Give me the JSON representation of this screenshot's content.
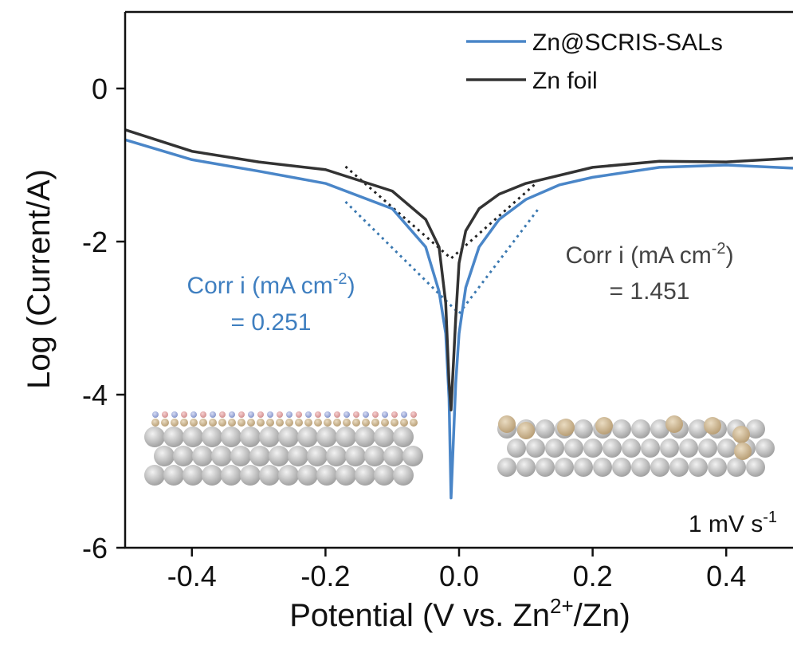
{
  "chart_data": {
    "type": "line",
    "x_label": {
      "text": "Potential (V vs. Zn",
      "sup": "2+",
      "after": "/Zn)"
    },
    "y_label": "Log (Current/A)",
    "xlim": [
      -0.5,
      0.5
    ],
    "ylim": [
      -6,
      1
    ],
    "xticks": [
      -0.4,
      -0.2,
      {
        "value": 0,
        "label": "0.0"
      },
      0.2,
      0.4
    ],
    "yticks": [
      -6,
      -4,
      -2,
      0
    ],
    "legend": "upper right",
    "series": [
      {
        "name": "Zn@SCRIS-SALs",
        "color": "#4a86c8",
        "x": [
          -0.5,
          -0.4,
          -0.3,
          -0.2,
          -0.1,
          -0.05,
          -0.03,
          -0.02,
          -0.015,
          -0.012,
          -0.005,
          0.0,
          0.01,
          0.03,
          0.06,
          0.1,
          0.15,
          0.2,
          0.3,
          0.4,
          0.5
        ],
        "y": [
          -0.67,
          -0.93,
          -1.08,
          -1.24,
          -1.57,
          -2.07,
          -2.65,
          -3.2,
          -4.05,
          -5.35,
          -3.85,
          -3.2,
          -2.6,
          -2.07,
          -1.71,
          -1.45,
          -1.26,
          -1.16,
          -1.03,
          -1.0,
          -1.04
        ]
      },
      {
        "name": "Zn foil",
        "color": "#333333",
        "x": [
          -0.5,
          -0.4,
          -0.3,
          -0.2,
          -0.1,
          -0.05,
          -0.03,
          -0.02,
          -0.015,
          -0.012,
          -0.005,
          0.0,
          0.01,
          0.03,
          0.06,
          0.1,
          0.2,
          0.3,
          0.4,
          0.5
        ],
        "y": [
          -0.54,
          -0.82,
          -0.96,
          -1.06,
          -1.34,
          -1.71,
          -2.07,
          -2.8,
          -3.84,
          -4.2,
          -3.0,
          -2.28,
          -1.86,
          -1.57,
          -1.38,
          -1.24,
          -1.03,
          -0.95,
          -0.96,
          -0.91
        ]
      }
    ],
    "fit_lines": [
      {
        "color": "#222222",
        "x": [
          -0.17,
          -0.012,
          0.115
        ],
        "y": [
          -1.02,
          -2.22,
          -1.24
        ]
      },
      {
        "color": "#3a78b0",
        "x": [
          -0.17,
          0.0,
          0.119
        ],
        "y": [
          -1.48,
          -2.94,
          -1.57
        ]
      }
    ],
    "annotations": [
      {
        "text": "Corr i (mA cm",
        "sup": "-2",
        "after": ")",
        "value_text": "= 0.251",
        "color": "#3f7fc0"
      },
      {
        "text": "Corr i (mA cm",
        "sup": "-2",
        "after": ")",
        "value_text": "= 1.451",
        "color": "#444444"
      },
      {
        "text": "1 mV s",
        "sup": "-1",
        "color": "#111111"
      }
    ]
  }
}
